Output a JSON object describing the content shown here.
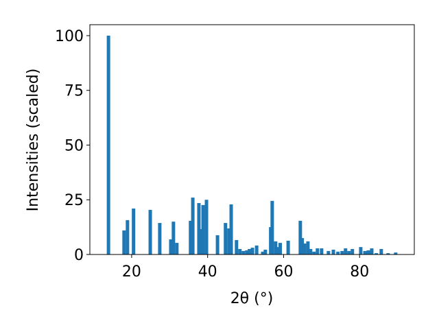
{
  "chart_data": {
    "type": "bar",
    "xlabel": "2θ (°)",
    "ylabel": "Intensities (scaled)",
    "color": "#1f77b4",
    "x": [
      13.9,
      18.0,
      18.9,
      20.5,
      24.9,
      27.4,
      30.3,
      31.0,
      31.9,
      35.5,
      36.1,
      37.7,
      38.2,
      38.8,
      39.7,
      42.6,
      44.7,
      45.6,
      46.2,
      47.6,
      48.5,
      49.4,
      50.3,
      51.0,
      51.8,
      52.9,
      54.5,
      55.2,
      56.6,
      57.0,
      57.9,
      58.4,
      59.1,
      61.2,
      64.4,
      64.9,
      65.5,
      66.4,
      67.1,
      68.0,
      68.9,
      70.0,
      71.8,
      73.1,
      74.3,
      75.4,
      76.3,
      77.2,
      78.1,
      80.3,
      81.4,
      82.3,
      83.2,
      84.4,
      85.7,
      87.5,
      89.5
    ],
    "values": [
      100,
      11.0,
      15.7,
      21,
      20.4,
      14.4,
      6.9,
      15,
      5.3,
      15.4,
      26,
      23.5,
      11.6,
      22.6,
      25,
      8.8,
      14.4,
      11.9,
      22.9,
      6.6,
      2.5,
      1.6,
      1.9,
      2.5,
      3.1,
      4.1,
      1.3,
      2.2,
      12.5,
      24.5,
      6,
      3.4,
      5.3,
      6.3,
      15.4,
      7.5,
      5,
      6,
      2.5,
      1.3,
      2.8,
      2.8,
      1.6,
      2.2,
      1.3,
      1.6,
      2.8,
      1.6,
      2.5,
      3.4,
      1.6,
      1.9,
      2.8,
      0.6,
      2.5,
      0.6,
      0.9
    ],
    "xlim": [
      9.0,
      94.4
    ],
    "ylim": [
      0,
      105
    ],
    "xticks": [
      20,
      40,
      60,
      80
    ],
    "yticks": [
      0,
      25,
      50,
      75,
      100
    ]
  }
}
